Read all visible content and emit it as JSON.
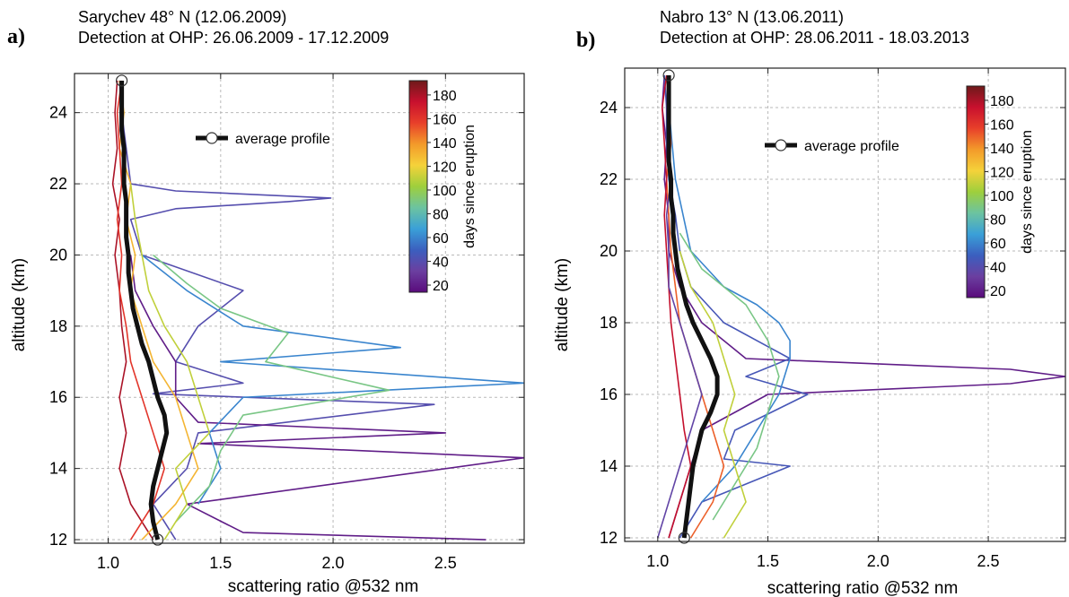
{
  "figure": {
    "width": 1191,
    "height": 666
  },
  "chart_data": [
    {
      "panel_label": "a)",
      "type": "line",
      "title_line1": "Sarychev 48° N (12.06.2009)",
      "title_line2": "Detection at OHP:  26.06.2009 - 17.12.2009",
      "xlabel": "scattering ratio @532 nm",
      "ylabel": "altitude (km)",
      "xlim": [
        0.85,
        2.85
      ],
      "ylim": [
        11.9,
        25.1
      ],
      "xticks": [
        1.0,
        1.5,
        2.0,
        2.5
      ],
      "xtick_labels": [
        "1.0",
        "1.5",
        "2.0",
        "2.5"
      ],
      "yticks": [
        12,
        14,
        16,
        18,
        20,
        22,
        24
      ],
      "ytick_labels": [
        "12",
        "14",
        "16",
        "18",
        "20",
        "22",
        "24"
      ],
      "grid": true,
      "legend": {
        "position": "upper-center",
        "entries": [
          "average profile"
        ]
      },
      "colorbar": {
        "label": "days since eruption",
        "ticks": [
          20,
          40,
          60,
          80,
          100,
          120,
          140,
          160,
          180
        ],
        "tick_labels": [
          "20",
          "40",
          "60",
          "80",
          "100",
          "120",
          "140",
          "160",
          "180"
        ],
        "range": [
          14,
          192
        ],
        "colormap": [
          "#5a0b7c",
          "#6b3fa0",
          "#3b5fbf",
          "#3aa0d8",
          "#6cc3a0",
          "#9ecf3c",
          "#f5d23a",
          "#f39a2a",
          "#e8402a",
          "#c8102e",
          "#6e1a1a"
        ]
      },
      "average_profile": {
        "altitude_km": [
          12.0,
          12.5,
          13.0,
          13.5,
          14.0,
          14.5,
          15.0,
          15.5,
          16.0,
          16.5,
          17.0,
          17.5,
          18.0,
          18.5,
          19.0,
          19.5,
          20.0,
          20.5,
          21.0,
          21.5,
          22.0,
          22.5,
          23.0,
          23.5,
          24.0,
          24.5,
          24.9
        ],
        "scattering_ratio": [
          1.22,
          1.2,
          1.19,
          1.2,
          1.22,
          1.24,
          1.26,
          1.25,
          1.22,
          1.2,
          1.18,
          1.15,
          1.13,
          1.11,
          1.1,
          1.09,
          1.09,
          1.08,
          1.08,
          1.08,
          1.07,
          1.07,
          1.07,
          1.06,
          1.06,
          1.06,
          1.06
        ]
      },
      "individual_profiles": [
        {
          "days_since_eruption": 180,
          "altitude_km": [
            12.0,
            13.0,
            14.0,
            15.0,
            16.0,
            17.0,
            18.0,
            19.0,
            20.0,
            21.0,
            22.0,
            23.0,
            24.0,
            24.9
          ],
          "scattering_ratio": [
            1.2,
            1.1,
            1.05,
            1.08,
            1.05,
            1.08,
            1.06,
            1.05,
            1.03,
            1.05,
            1.02,
            1.04,
            1.03,
            1.04
          ]
        },
        {
          "days_since_eruption": 40,
          "altitude_km": [
            12.0,
            12.5,
            13.0,
            14.0,
            15.0,
            15.8,
            16.1,
            16.4,
            17.0,
            18.0,
            19.0,
            20.0,
            21.0,
            21.3,
            21.5,
            21.6,
            21.8,
            22.0,
            23.0,
            24.0,
            24.9
          ],
          "scattering_ratio": [
            1.3,
            1.25,
            1.2,
            1.35,
            1.4,
            2.45,
            1.2,
            1.6,
            1.3,
            1.4,
            1.6,
            1.15,
            1.1,
            1.3,
            1.8,
            1.99,
            1.3,
            1.1,
            1.08,
            1.06,
            1.05
          ]
        },
        {
          "days_since_eruption": 20,
          "altitude_km": [
            12.0,
            12.2,
            13.0,
            14.3,
            14.7,
            15.0,
            15.3,
            16.0,
            17.0,
            18.0,
            19.0,
            20.0
          ],
          "scattering_ratio": [
            2.68,
            1.6,
            1.35,
            2.85,
            1.4,
            2.5,
            1.4,
            1.3,
            1.3,
            1.2,
            1.12,
            1.1
          ]
        },
        {
          "days_since_eruption": 60,
          "altitude_km": [
            13.0,
            14.0,
            15.0,
            16.0,
            16.4,
            17.0,
            17.4,
            18.0,
            19.0,
            20.0
          ],
          "scattering_ratio": [
            1.4,
            1.5,
            1.45,
            1.6,
            2.85,
            1.5,
            2.3,
            1.6,
            1.35,
            1.15
          ]
        },
        {
          "days_since_eruption": 90,
          "altitude_km": [
            12.5,
            13.5,
            14.5,
            15.5,
            16.2,
            17.0,
            17.8,
            18.5,
            19.2,
            20.0
          ],
          "scattering_ratio": [
            1.3,
            1.45,
            1.5,
            1.6,
            2.25,
            1.7,
            1.8,
            1.5,
            1.35,
            1.2
          ]
        },
        {
          "days_since_eruption": 130,
          "altitude_km": [
            12.0,
            13.0,
            14.0,
            15.0,
            16.0,
            17.0,
            18.0,
            19.0,
            20.0,
            21.0,
            22.0,
            23.0,
            24.0,
            24.9
          ],
          "scattering_ratio": [
            1.15,
            1.3,
            1.4,
            1.35,
            1.3,
            1.2,
            1.15,
            1.1,
            1.12,
            1.08,
            1.1,
            1.05,
            1.07,
            1.05
          ]
        },
        {
          "days_since_eruption": 160,
          "altitude_km": [
            12.0,
            13.0,
            14.0,
            15.0,
            16.0,
            17.0,
            18.0,
            19.0,
            20.0,
            21.0,
            22.0,
            23.0,
            24.0,
            24.9
          ],
          "scattering_ratio": [
            1.1,
            1.2,
            1.25,
            1.2,
            1.15,
            1.1,
            1.08,
            1.05,
            1.06,
            1.04,
            1.06,
            1.05,
            1.04,
            1.06
          ]
        },
        {
          "days_since_eruption": 110,
          "altitude_km": [
            12.0,
            13.0,
            14.0,
            15.0,
            16.0,
            17.0,
            18.0,
            19.0,
            20.0,
            21.0,
            22.0
          ],
          "scattering_ratio": [
            1.25,
            1.35,
            1.3,
            1.45,
            1.4,
            1.35,
            1.25,
            1.18,
            1.15,
            1.12,
            1.1
          ]
        }
      ]
    },
    {
      "panel_label": "b)",
      "type": "line",
      "title_line1": "Nabro 13° N (13.06.2011)",
      "title_line2": "Detection at OHP:  28.06.2011 - 18.03.2013",
      "xlabel": "scattering ratio @532 nm",
      "ylabel": "altitude (km)",
      "xlim": [
        0.85,
        2.85
      ],
      "ylim": [
        11.9,
        25.1
      ],
      "xticks": [
        1.0,
        1.5,
        2.0,
        2.5
      ],
      "xtick_labels": [
        "1.0",
        "1.5",
        "2.0",
        "2.5"
      ],
      "yticks": [
        12,
        14,
        16,
        18,
        20,
        22,
        24
      ],
      "ytick_labels": [
        "12",
        "14",
        "16",
        "18",
        "20",
        "22",
        "24"
      ],
      "grid": true,
      "legend": {
        "position": "upper-center",
        "entries": [
          "average profile"
        ]
      },
      "colorbar": {
        "label": "days since eruption",
        "ticks": [
          20,
          40,
          60,
          80,
          100,
          120,
          140,
          160,
          180
        ],
        "tick_labels": [
          "20",
          "40",
          "60",
          "80",
          "100",
          "120",
          "140",
          "160",
          "180"
        ],
        "range": [
          14,
          192
        ],
        "colormap": [
          "#5a0b7c",
          "#6b3fa0",
          "#3b5fbf",
          "#3aa0d8",
          "#6cc3a0",
          "#9ecf3c",
          "#f5d23a",
          "#f39a2a",
          "#e8402a",
          "#c8102e",
          "#6e1a1a"
        ]
      },
      "average_profile": {
        "altitude_km": [
          12.0,
          12.5,
          13.0,
          13.5,
          14.0,
          14.5,
          15.0,
          15.5,
          16.0,
          16.5,
          17.0,
          17.5,
          18.0,
          18.5,
          19.0,
          19.5,
          20.0,
          20.5,
          21.0,
          21.5,
          22.0,
          22.5,
          23.0,
          23.5,
          24.0,
          24.5,
          24.9
        ],
        "scattering_ratio": [
          1.12,
          1.13,
          1.14,
          1.15,
          1.16,
          1.18,
          1.2,
          1.24,
          1.27,
          1.27,
          1.24,
          1.2,
          1.16,
          1.13,
          1.11,
          1.09,
          1.08,
          1.07,
          1.07,
          1.06,
          1.06,
          1.05,
          1.05,
          1.05,
          1.05,
          1.05,
          1.05
        ]
      },
      "individual_profiles": [
        {
          "days_since_eruption": 20,
          "altitude_km": [
            12.0,
            13.0,
            14.0,
            15.0,
            16.0,
            16.3,
            16.5,
            16.7,
            17.0,
            18.0,
            19.0,
            20.0,
            21.0,
            22.0,
            23.0,
            24.0,
            24.9
          ],
          "scattering_ratio": [
            1.05,
            1.1,
            1.15,
            1.2,
            1.5,
            2.6,
            2.85,
            2.6,
            1.4,
            1.2,
            1.1,
            1.05,
            1.05,
            1.03,
            1.04,
            1.02,
            1.03
          ]
        },
        {
          "days_since_eruption": 45,
          "altitude_km": [
            12.0,
            13.0,
            14.0,
            14.2,
            15.0,
            16.0,
            16.5,
            17.0,
            18.0,
            19.0,
            20.0,
            21.0,
            22.0,
            23.0,
            24.0,
            24.9
          ],
          "scattering_ratio": [
            1.1,
            1.2,
            1.6,
            1.3,
            1.35,
            1.68,
            1.4,
            1.6,
            1.3,
            1.15,
            1.1,
            1.08,
            1.05,
            1.04,
            1.04,
            1.03
          ]
        },
        {
          "days_since_eruption": 60,
          "altitude_km": [
            13.0,
            14.0,
            15.0,
            16.0,
            17.0,
            17.5,
            18.0,
            18.5,
            19.0,
            20.0,
            22.0,
            24.0
          ],
          "scattering_ratio": [
            1.2,
            1.35,
            1.45,
            1.55,
            1.6,
            1.6,
            1.55,
            1.45,
            1.3,
            1.15,
            1.08,
            1.05
          ]
        },
        {
          "days_since_eruption": 90,
          "altitude_km": [
            12.5,
            13.5,
            14.5,
            15.5,
            16.5,
            17.5,
            18.5,
            19.5,
            20.5
          ],
          "scattering_ratio": [
            1.25,
            1.35,
            1.45,
            1.5,
            1.55,
            1.5,
            1.4,
            1.2,
            1.1
          ]
        },
        {
          "days_since_eruption": 110,
          "altitude_km": [
            12.0,
            13.0,
            14.0,
            15.0,
            16.0,
            17.0,
            18.0,
            19.0,
            20.0
          ],
          "scattering_ratio": [
            1.3,
            1.4,
            1.35,
            1.3,
            1.35,
            1.3,
            1.25,
            1.15,
            1.1
          ]
        },
        {
          "days_since_eruption": 150,
          "altitude_km": [
            12.0,
            13.0,
            14.0,
            15.0,
            16.0,
            17.0,
            18.0,
            19.0,
            20.0,
            21.0,
            22.0,
            23.0,
            24.0,
            24.9
          ],
          "scattering_ratio": [
            1.15,
            1.25,
            1.3,
            1.25,
            1.2,
            1.15,
            1.1,
            1.08,
            1.06,
            1.05,
            1.04,
            1.06,
            1.05,
            1.04
          ]
        },
        {
          "days_since_eruption": 175,
          "altitude_km": [
            12.0,
            13.0,
            14.0,
            15.0,
            16.0,
            17.0,
            18.0,
            19.0,
            20.0,
            21.0,
            22.0,
            23.0,
            24.0,
            24.9
          ],
          "scattering_ratio": [
            1.05,
            1.1,
            1.15,
            1.12,
            1.1,
            1.08,
            1.06,
            1.05,
            1.04,
            1.03,
            1.04,
            1.03,
            1.02,
            1.04
          ]
        },
        {
          "days_since_eruption": 35,
          "altitude_km": [
            12.0,
            13.0,
            14.0,
            15.0,
            16.0,
            17.0,
            18.0,
            19.0,
            20.0,
            21.0,
            22.0,
            23.0,
            24.0,
            24.9
          ],
          "scattering_ratio": [
            1.0,
            1.05,
            1.1,
            1.15,
            1.2,
            1.15,
            1.1,
            1.05,
            1.05,
            1.04,
            1.06,
            1.05,
            1.04,
            1.05
          ]
        }
      ]
    }
  ]
}
